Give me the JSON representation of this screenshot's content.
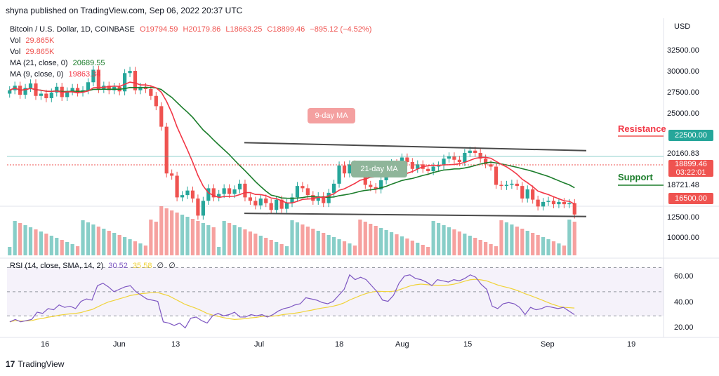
{
  "header": {
    "text": "shyna published on TradingView.com, Sep 06, 2022 20:37 UTC"
  },
  "legend": {
    "symbol": "Bitcoin / U.S. Dollar, 1D, COINBASE",
    "o": "O19794.59",
    "h": "H20179.86",
    "l": "L18663.25",
    "c": "C18899.46",
    "chg": "−895.12 (−4.52%)",
    "vol1_label": "Vol",
    "vol1_value": "29.865K",
    "vol2_label": "Vol",
    "vol2_value": "29.865K",
    "ma21_label": "MA (21, close, 0)",
    "ma21_value": "20689.55",
    "ma9_label": "MA (9, close, 0)",
    "ma9_value": "19863.34",
    "rsi_label": "RSI (14, close, SMA, 14, 2)",
    "rsi_value": "30.52",
    "rsi_sma_value": "35.58",
    "rsi_extra1": "∅",
    "rsi_extra2": "∅"
  },
  "price_axis": {
    "currency": "USD",
    "ticks": [
      "32500.00",
      "30000.00",
      "27500.00",
      "25000.00",
      "22500.00",
      "20160.83",
      "18899.46",
      "03:22:01",
      "18721.48",
      "16500.00",
      "12500.00",
      "10000.00"
    ]
  },
  "rsi_axis": {
    "ticks": [
      "60.00",
      "40.00",
      "20.00"
    ]
  },
  "time_axis": {
    "ticks": [
      "16",
      "Jun",
      "13",
      "Jul",
      "18",
      "Aug",
      "15",
      "Sep",
      "19"
    ]
  },
  "annotations": {
    "nine_ma": "9-day MA",
    "twentyone_ma": "21-day MA",
    "resistance": "Resistance",
    "support": "Support"
  },
  "footer": {
    "brand": "TradingView"
  },
  "colors": {
    "up": "#26a69a",
    "down": "#ef5350",
    "ma9": "#f23645",
    "ma21": "#1b7d2b",
    "rsi": "#7e57c2",
    "rsi_sma": "#f0d33a",
    "resistance_tag": "#26a69a",
    "support_tag": "#ef5350"
  },
  "chart_data": {
    "type": "candlestick",
    "title": "Bitcoin / U.S. Dollar, 1D, COINBASE",
    "ylabel": "USD",
    "ylim": [
      15500,
      35500
    ],
    "close_series": [
      29800,
      30200,
      29400,
      30000,
      30400,
      29300,
      29500,
      29100,
      29600,
      30100,
      29200,
      29700,
      30000,
      29600,
      29800,
      30500,
      31600,
      29900,
      30200,
      29800,
      30100,
      29700,
      31300,
      31500,
      29800,
      30100,
      29900,
      29300,
      28400,
      26600,
      22500,
      22300,
      20400,
      20600,
      21000,
      20300,
      18800,
      20100,
      21200,
      20400,
      20700,
      21200,
      20700,
      21100,
      21600,
      20400,
      20100,
      19700,
      20300,
      19900,
      19300,
      20200,
      19400,
      19900,
      20400,
      21400,
      21200,
      20600,
      20100,
      20500,
      19900,
      20800,
      21600,
      23200,
      22500,
      23300,
      22700,
      22600,
      21500,
      21300,
      21100,
      21900,
      22800,
      23400,
      23200,
      23900,
      23500,
      22900,
      23300,
      22900,
      22700,
      23100,
      23200,
      23800,
      24000,
      23700,
      23500,
      24300,
      24500,
      24300,
      23800,
      23300,
      23100,
      21500,
      21400,
      21500,
      21600,
      21400,
      20300,
      21100,
      20200,
      19600,
      20000,
      20100,
      19800,
      20000,
      19800,
      19900,
      18899.46
    ],
    "support_line": [
      19000,
      18721.48
    ],
    "resistance_line": [
      25200,
      24500
    ],
    "levels": {
      "resistance": 22500,
      "support": 16500
    },
    "x_ticks": [
      "16",
      "Jun",
      "13",
      "Jul",
      "18",
      "Aug",
      "15",
      "Sep",
      "19"
    ],
    "rsi_ylim": [
      15,
      72
    ],
    "rsi_series": [
      25,
      27,
      25,
      26,
      27,
      33,
      32,
      36,
      35,
      39,
      37,
      38,
      36,
      42,
      44,
      43,
      55,
      57,
      54,
      50,
      52,
      54,
      55,
      50,
      47,
      44,
      43,
      42,
      25,
      24,
      22,
      24,
      20,
      28,
      29,
      26,
      24,
      30,
      32,
      30,
      31,
      33,
      29,
      29,
      31,
      30,
      31,
      29,
      31,
      34,
      36,
      37,
      39,
      40,
      45,
      44,
      43,
      41,
      40,
      42,
      47,
      52,
      64,
      60,
      62,
      60,
      55,
      50,
      43,
      42,
      47,
      57,
      63,
      64,
      61,
      60,
      58,
      55,
      60,
      59,
      58,
      60,
      59,
      61,
      64,
      62,
      56,
      52,
      38,
      36,
      40,
      41,
      40,
      37,
      31,
      37,
      35,
      36,
      38,
      37,
      36,
      37,
      34,
      31
    ]
  }
}
